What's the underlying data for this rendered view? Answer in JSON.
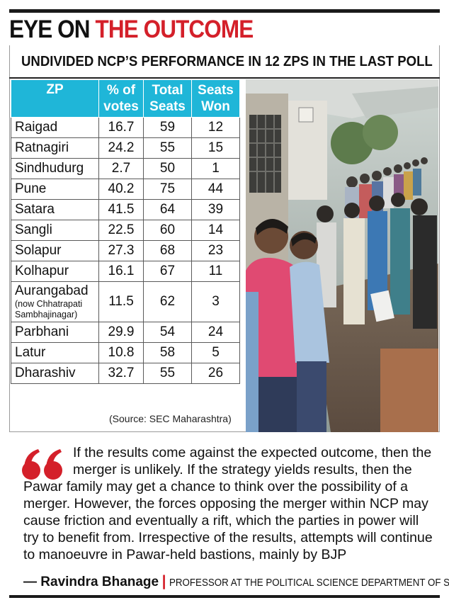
{
  "headline": {
    "part1": "EYE ON ",
    "part2": "THE OUTCOME"
  },
  "subheading": "UNDIVIDED NCP’S PERFORMANCE IN 12 ZPS IN THE LAST POLL",
  "table": {
    "headers": {
      "zp": "ZP",
      "votes_1": "% of",
      "votes_2": "votes",
      "total_1": "Total",
      "total_2": "Seats",
      "won_1": "Seats",
      "won_2": "Won"
    },
    "rows": [
      {
        "zp": "Raigad",
        "votes": "16.7",
        "total": "59",
        "won": "12"
      },
      {
        "zp": "Ratnagiri",
        "votes": "24.2",
        "total": "55",
        "won": "15"
      },
      {
        "zp": "Sindhudurg",
        "votes": "2.7",
        "total": "50",
        "won": "1"
      },
      {
        "zp": "Pune",
        "votes": "40.2",
        "total": "75",
        "won": "44"
      },
      {
        "zp": "Satara",
        "votes": "41.5",
        "total": "64",
        "won": "39"
      },
      {
        "zp": "Sangli",
        "votes": "22.5",
        "total": "60",
        "won": "14"
      },
      {
        "zp": "Solapur",
        "votes": "27.3",
        "total": "68",
        "won": "23"
      },
      {
        "zp": "Kolhapur",
        "votes": "16.1",
        "total": "67",
        "won": "11"
      },
      {
        "zp": "Aurangabad",
        "note_1": "(now Chhatrapati",
        "note_2": "Sambhajinagar)",
        "votes": "11.5",
        "total": "62",
        "won": "3"
      },
      {
        "zp": "Parbhani",
        "votes": "29.9",
        "total": "54",
        "won": "24"
      },
      {
        "zp": "Latur",
        "votes": "10.8",
        "total": "58",
        "won": "5"
      },
      {
        "zp": "Dharashiv",
        "votes": "32.7",
        "total": "55",
        "won": "26"
      }
    ]
  },
  "source": "(Source: SEC Maharashtra)",
  "quote": {
    "text": "If the results come against the expected outcome, then the merger is unlikely. If the strategy yields results, then the Pawar family may get a chance to think over the possibility of a merger. However, the forces opposing the merger within NCP may cause friction and eventually a rift, which the parties in power will try to benefit from. Irrespective of the results, attempts will continue to manoeuvre in Pawar-held bastions, mainly by BJP",
    "author": "— Ravindra Bhanage",
    "separator": "|",
    "role": "PROFESSOR AT THE POLITICAL SCIENCE DEPARTMENT OF SUK"
  },
  "colors": {
    "accent_red": "#d4202a",
    "table_header": "#1fb6d8"
  },
  "icons": {
    "quote": "quote-mark-icon"
  },
  "photo": {
    "subject": "people queueing to vote"
  }
}
